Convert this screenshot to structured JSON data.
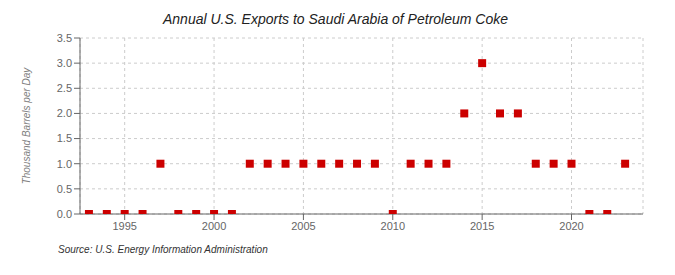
{
  "chart_data": {
    "type": "scatter",
    "title": "Annual U.S. Exports to Saudi Arabia of Petroleum Coke",
    "y_label": "Thousand Barrels per Day",
    "annotations": [
      "Source: U.S. Energy Information Administration"
    ],
    "x": [
      1993,
      1994,
      1995,
      1996,
      1997,
      1998,
      1999,
      2000,
      2001,
      2002,
      2003,
      2004,
      2005,
      2006,
      2007,
      2008,
      2009,
      2010,
      2011,
      2012,
      2013,
      2014,
      2015,
      2016,
      2017,
      2018,
      2019,
      2020,
      2021,
      2022,
      2023
    ],
    "values": [
      0,
      0,
      0,
      0,
      1,
      0,
      0,
      0,
      0,
      1,
      1,
      1,
      1,
      1,
      1,
      1,
      1,
      0,
      1,
      1,
      1,
      2,
      3,
      2,
      2,
      1,
      1,
      1,
      0,
      0,
      1
    ],
    "color": "#cc0000",
    "marker": "square",
    "xlim": [
      1992.5,
      2024
    ],
    "ylim": [
      0,
      3.5
    ],
    "xticks": [
      1995,
      2000,
      2005,
      2010,
      2015,
      2020
    ],
    "yticks": [
      {
        "value": 0,
        "label": "0.0"
      },
      0.5,
      {
        "value": 1,
        "label": "1.0"
      },
      1.5,
      {
        "value": 2,
        "label": "2.0"
      },
      2.5,
      {
        "value": 3,
        "label": "3.0"
      },
      3.5
    ],
    "grid": true
  }
}
